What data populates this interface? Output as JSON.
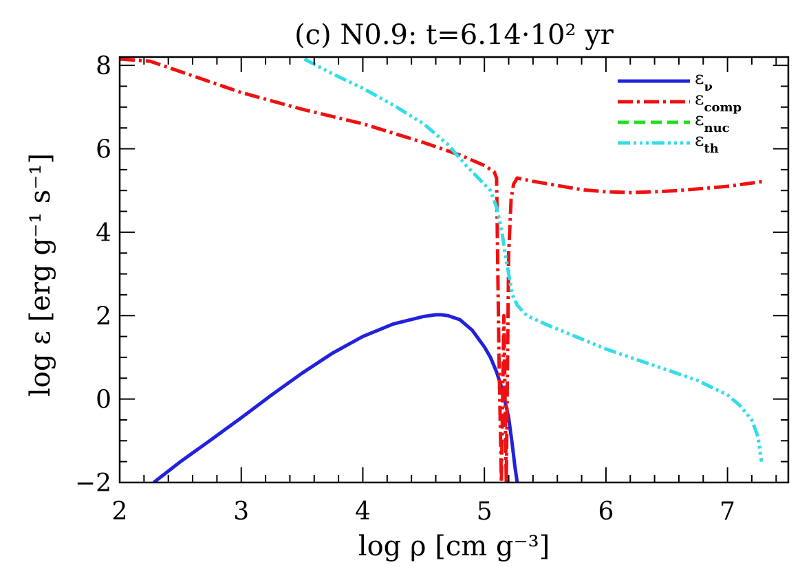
{
  "chart_data": {
    "type": "line",
    "title": "(c) N0.9: t=6.14·10² yr",
    "xlabel": "log ρ [cm g⁻³]",
    "ylabel": "log ε [erg g⁻¹ s⁻¹]",
    "xlim": [
      2,
      7.5
    ],
    "ylim": [
      -2,
      8.2
    ],
    "xticks": [
      2,
      3,
      4,
      5,
      6,
      7
    ],
    "xtick_labels": [
      "2",
      "3",
      "4",
      "5",
      "6",
      "7"
    ],
    "yticks": [
      -2,
      0,
      2,
      4,
      6,
      8
    ],
    "ytick_labels": [
      "−2",
      "0",
      "2",
      "4",
      "6",
      "8"
    ],
    "legend_position": "top-right",
    "grid": false,
    "series": [
      {
        "name": "εν",
        "legend_main": "ε",
        "legend_sub": "ν",
        "color": "#2222dd",
        "style": "solid",
        "x": [
          2.28,
          2.5,
          2.75,
          3.0,
          3.25,
          3.5,
          3.75,
          4.0,
          4.25,
          4.5,
          4.6,
          4.65,
          4.7,
          4.8,
          4.9,
          5.0,
          5.05,
          5.1,
          5.15,
          5.2,
          5.23,
          5.25,
          5.27
        ],
        "y": [
          -2.0,
          -1.5,
          -0.98,
          -0.45,
          0.1,
          0.62,
          1.1,
          1.5,
          1.8,
          1.98,
          2.02,
          2.02,
          2.0,
          1.9,
          1.65,
          1.25,
          1.0,
          0.65,
          0.2,
          -0.45,
          -1.1,
          -1.6,
          -2.0
        ]
      },
      {
        "name": "εcomp",
        "legend_main": "ε",
        "legend_sub": "comp",
        "color": "#ee1111",
        "style": "dashdot",
        "x": [
          2.0,
          2.25,
          2.5,
          3.0,
          3.5,
          4.0,
          4.5,
          4.8,
          5.0,
          5.08,
          5.1,
          5.12,
          5.14,
          5.16,
          5.18,
          5.2,
          5.22,
          5.24,
          5.27,
          5.4,
          5.6,
          5.8,
          6.0,
          6.2,
          6.4,
          6.6,
          6.8,
          7.0,
          7.2,
          7.3
        ],
        "y": [
          8.15,
          8.1,
          7.85,
          7.35,
          6.95,
          6.6,
          6.15,
          5.85,
          5.6,
          5.45,
          5.3,
          1.0,
          -2.0,
          2.0,
          -2.0,
          3.5,
          4.8,
          5.15,
          5.3,
          5.22,
          5.12,
          5.02,
          4.97,
          4.95,
          4.97,
          5.0,
          5.05,
          5.1,
          5.18,
          5.22
        ]
      },
      {
        "name": "εnuc",
        "legend_main": "ε",
        "legend_sub": "nuc",
        "color": "#22dd22",
        "style": "dashed",
        "x": [],
        "y": []
      },
      {
        "name": "εth",
        "legend_main": "ε",
        "legend_sub": "th",
        "color": "#33dde8",
        "style": "dashdotdotdot",
        "x": [
          3.52,
          3.75,
          4.0,
          4.25,
          4.5,
          4.7,
          4.85,
          4.95,
          5.05,
          5.1,
          5.13,
          5.15,
          5.17,
          5.2,
          5.23,
          5.27,
          5.35,
          5.5,
          5.75,
          6.0,
          6.25,
          6.5,
          6.75,
          7.0,
          7.1,
          7.2,
          7.25,
          7.28
        ],
        "y": [
          8.15,
          7.8,
          7.45,
          7.05,
          6.6,
          6.1,
          5.6,
          5.3,
          5.0,
          4.6,
          4.2,
          3.9,
          3.5,
          3.0,
          2.5,
          2.25,
          2.0,
          1.8,
          1.5,
          1.2,
          0.95,
          0.7,
          0.45,
          0.1,
          -0.15,
          -0.5,
          -0.9,
          -1.5
        ]
      }
    ]
  }
}
